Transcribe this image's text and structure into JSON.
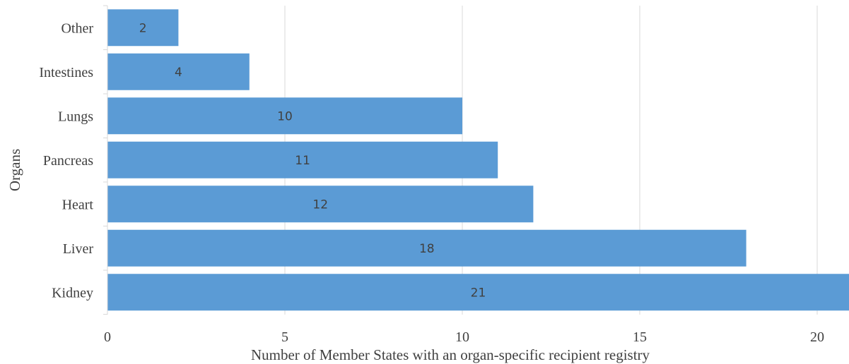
{
  "chart_data": {
    "type": "bar",
    "orientation": "horizontal",
    "categories": [
      "Other",
      "Intestines",
      "Lungs",
      "Pancreas",
      "Heart",
      "Liver",
      "Kidney"
    ],
    "values": [
      2,
      4,
      10,
      11,
      12,
      18,
      21
    ],
    "xlabel": "Number of Member States with an organ-specific recipient registry",
    "ylabel": "Organs",
    "xlim": [
      0,
      21
    ],
    "xticks": [
      0,
      5,
      10,
      15,
      20
    ],
    "grid": "vertical",
    "bar_color": "#5b9bd5",
    "data_labels": true
  }
}
